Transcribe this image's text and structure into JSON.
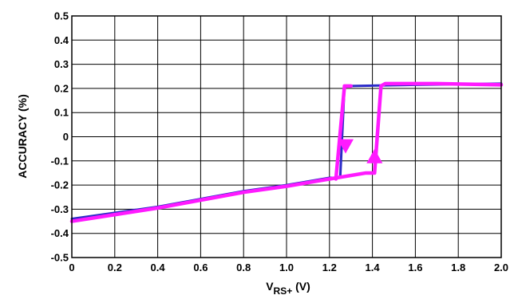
{
  "chart_data": {
    "type": "line",
    "xlabel": "V",
    "xlabel_sub": "RS+",
    "xlabel_unit": " (V)",
    "ylabel": "ACCURACY (%)",
    "xlim": [
      0,
      2.0
    ],
    "ylim": [
      -0.5,
      0.5
    ],
    "grid": true,
    "x_ticks": [
      0,
      0.2,
      0.4,
      0.6,
      0.8,
      1.0,
      1.2,
      1.4,
      1.6,
      1.8,
      2.0
    ],
    "x_tick_labels": [
      "0",
      "0.2",
      "0.4",
      "0.6",
      "0.8",
      "1.0",
      "1.2",
      "1.4",
      "1.6",
      "1.8",
      "2.0"
    ],
    "y_ticks": [
      -0.5,
      -0.4,
      -0.3,
      -0.2,
      -0.1,
      0,
      0.1,
      0.2,
      0.3,
      0.4,
      0.5
    ],
    "y_tick_labels": [
      "-0.5",
      "-0.4",
      "-0.3",
      "-0.2",
      "-0.1",
      "0",
      "0.1",
      "0.2",
      "0.3",
      "0.4",
      "0.5"
    ],
    "series": [
      {
        "color": "#2b2bc8",
        "x": [
          0,
          0.4,
          0.8,
          1.0,
          1.2,
          1.25,
          1.27,
          1.3,
          1.6,
          2.0
        ],
        "y": [
          -0.34,
          -0.29,
          -0.225,
          -0.2,
          -0.17,
          -0.17,
          0.21,
          0.21,
          0.215,
          0.22
        ]
      },
      {
        "color": "#ff1aff",
        "x": [
          0,
          0.4,
          0.8,
          1.0,
          1.2,
          1.37,
          1.41,
          1.44,
          1.46,
          1.7,
          2.0
        ],
        "y": [
          -0.35,
          -0.295,
          -0.23,
          -0.205,
          -0.175,
          -0.15,
          -0.15,
          0.21,
          0.22,
          0.22,
          0.215
        ]
      },
      {
        "color": "#ff1aff",
        "x": [
          1.3,
          1.27,
          1.23
        ],
        "y": [
          0.21,
          0.21,
          -0.175
        ]
      }
    ],
    "arrows": [
      {
        "color": "#ff1aff",
        "x": 1.275,
        "y": -0.04,
        "direction": "down"
      },
      {
        "color": "#ff1aff",
        "x": 1.41,
        "y": -0.08,
        "direction": "up"
      }
    ]
  }
}
